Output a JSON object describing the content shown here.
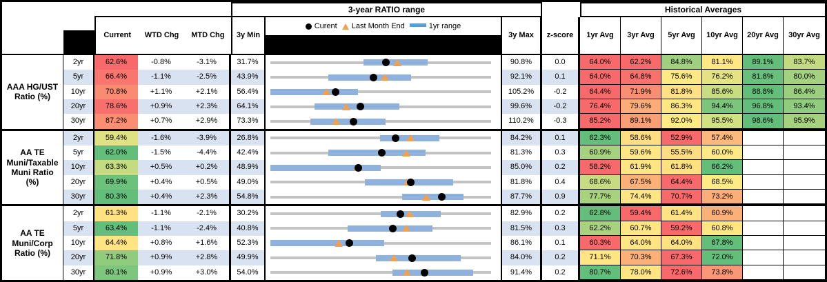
{
  "header": {
    "range_title": "3-year RATIO range",
    "hist_title": "Historical Averages",
    "cols": {
      "current": "Current",
      "wtd": "WTD Chg",
      "mtd": "MTD Chg",
      "min": "3y Min",
      "max": "3y Max",
      "z": "z-score"
    },
    "avg_cols": [
      "1yr Avg",
      "3yr Avg",
      "5yr Avg",
      "10yr Avg",
      "20yr Avg",
      "30yr Avg"
    ],
    "legend": {
      "current": "Curent",
      "last_month": "Last Month End",
      "range": "1yr range"
    }
  },
  "colors": {
    "stripe": "#D9E2F1",
    "bar": "#8FB2DC",
    "track": "#C3C3C3",
    "marker_orange": "#F2A04E",
    "legend_dash": "#5B9BD5",
    "heat_red": "#F8696B",
    "heat_yellow": "#FFEB84",
    "heat_green": "#63BE7B"
  },
  "groups": [
    {
      "label_lines": [
        "AAA HG/UST",
        "Ratio (%)"
      ],
      "rows": [
        {
          "tenor": "2yr",
          "current": "62.6%",
          "current_bg": "#F8696B",
          "wtd": "-0.8%",
          "mtd": "-3.1%",
          "min": "31.7%",
          "max": "90.8%",
          "z": "0.0",
          "min_v": 31.7,
          "max_v": 90.8,
          "bar": [
            56.6,
            73.9
          ],
          "dot_v": 62.6,
          "tri_v": 65.7,
          "avgs": [
            {
              "t": "64.0%",
              "bg": "#F8696B"
            },
            {
              "t": "62.2%",
              "bg": "#F8696B"
            },
            {
              "t": "84.8%",
              "bg": "#A0D07F"
            },
            {
              "t": "81.1%",
              "bg": "#FFE884"
            },
            {
              "t": "89.1%",
              "bg": "#63BE7B"
            },
            {
              "t": "83.7%",
              "bg": "#C3DA80"
            }
          ]
        },
        {
          "tenor": "5yr",
          "current": "66.4%",
          "current_bg": "#F8766F",
          "wtd": "-1.1%",
          "mtd": "-2.5%",
          "min": "43.9%",
          "max": "92.1%",
          "z": "0.1",
          "min_v": 43.9,
          "max_v": 92.1,
          "bar": [
            56.5,
            74.6
          ],
          "dot_v": 66.4,
          "tri_v": 68.9,
          "avgs": [
            {
              "t": "64.0%",
              "bg": "#F8696B"
            },
            {
              "t": "64.8%",
              "bg": "#F8716D"
            },
            {
              "t": "75.6%",
              "bg": "#FFE984"
            },
            {
              "t": "76.2%",
              "bg": "#E3E383"
            },
            {
              "t": "81.8%",
              "bg": "#68C07C"
            },
            {
              "t": "80.0%",
              "bg": "#A4D17F"
            }
          ]
        },
        {
          "tenor": "10yr",
          "current": "70.8%",
          "current_bg": "#F98B72",
          "wtd": "+1.1%",
          "mtd": "+2.1%",
          "min": "56.4%",
          "max": "105.2%",
          "z": "-0.2",
          "min_v": 56.4,
          "max_v": 105.2,
          "bar": [
            56.4,
            75.8
          ],
          "dot_v": 70.8,
          "tri_v": 68.7,
          "avgs": [
            {
              "t": "64.4%",
              "bg": "#F8696B"
            },
            {
              "t": "71.9%",
              "bg": "#F98E73"
            },
            {
              "t": "81.8%",
              "bg": "#FFE082"
            },
            {
              "t": "85.6%",
              "bg": "#C8DC81"
            },
            {
              "t": "88.8%",
              "bg": "#63BE7B"
            },
            {
              "t": "86.4%",
              "bg": "#9BCE7E"
            }
          ]
        },
        {
          "tenor": "20yr",
          "current": "78.6%",
          "current_bg": "#F8706D",
          "wtd": "+0.9%",
          "mtd": "+2.3%",
          "min": "64.1%",
          "max": "99.6%",
          "z": "-0.2",
          "min_v": 64.1,
          "max_v": 99.6,
          "bar": [
            71.2,
            84.9
          ],
          "dot_v": 78.6,
          "tri_v": 76.3,
          "avgs": [
            {
              "t": "76.4%",
              "bg": "#F8696B"
            },
            {
              "t": "79.6%",
              "bg": "#FBAC77"
            },
            {
              "t": "86.3%",
              "bg": "#FFE683"
            },
            {
              "t": "94.4%",
              "bg": "#7CC57D"
            },
            {
              "t": "96.8%",
              "bg": "#63BE7B"
            },
            {
              "t": "93.4%",
              "bg": "#90CB7E"
            }
          ]
        },
        {
          "tenor": "30yr",
          "current": "87.2%",
          "current_bg": "#F98E73",
          "wtd": "+0.7%",
          "mtd": "+2.9%",
          "min": "73.3%",
          "max": "110.2%",
          "z": "-0.3",
          "min_v": 73.3,
          "max_v": 110.2,
          "bar": [
            80.0,
            92.6
          ],
          "dot_v": 87.2,
          "tri_v": 84.3,
          "avgs": [
            {
              "t": "85.2%",
              "bg": "#F8696B"
            },
            {
              "t": "89.1%",
              "bg": "#FA9F75"
            },
            {
              "t": "92.0%",
              "bg": "#FFEB84"
            },
            {
              "t": "95.5%",
              "bg": "#D2DF82"
            },
            {
              "t": "98.6%",
              "bg": "#63BE7B"
            },
            {
              "t": "95.9%",
              "bg": "#A6D17F"
            }
          ]
        }
      ]
    },
    {
      "label_lines": [
        "AA TE",
        "Muni/Taxable",
        "Muni Ratio",
        "(%)"
      ],
      "rows": [
        {
          "tenor": "2yr",
          "current": "59.4%",
          "current_bg": "#DFE283",
          "wtd": "-1.6%",
          "mtd": "-3.9%",
          "min": "26.8%",
          "max": "84.2%",
          "z": "0.1",
          "min_v": 26.8,
          "max_v": 84.2,
          "bar": [
            55.4,
            70.8
          ],
          "dot_v": 59.4,
          "tri_v": 63.3,
          "avgs": [
            {
              "t": "62.3%",
              "bg": "#63BE7B"
            },
            {
              "t": "58.6%",
              "bg": "#FFDD81"
            },
            {
              "t": "52.9%",
              "bg": "#F8696B"
            },
            {
              "t": "57.4%",
              "bg": "#FCB97B"
            },
            null,
            null
          ]
        },
        {
          "tenor": "5yr",
          "current": "62.0%",
          "current_bg": "#63BE7B",
          "wtd": "-1.5%",
          "mtd": "-4.4%",
          "min": "42.4%",
          "max": "81.3%",
          "z": "0.3",
          "min_v": 42.4,
          "max_v": 81.3,
          "bar": [
            52.6,
            69.8
          ],
          "dot_v": 62.0,
          "tri_v": 66.4,
          "avgs": [
            {
              "t": "60.9%",
              "bg": "#A6D17F"
            },
            {
              "t": "59.6%",
              "bg": "#FFE883"
            },
            {
              "t": "55.5%",
              "bg": "#FEDE81"
            },
            {
              "t": "60.0%",
              "bg": "#FFE984"
            },
            null,
            null
          ]
        },
        {
          "tenor": "10yr",
          "current": "63.3%",
          "current_bg": "#C4DB81",
          "wtd": "+0.5%",
          "mtd": "+0.2%",
          "min": "48.9%",
          "max": "85.0%",
          "z": "0.2",
          "min_v": 48.9,
          "max_v": 85.0,
          "bar": [
            48.9,
            66.9
          ],
          "dot_v": 63.3,
          "tri_v": 63.1,
          "avgs": [
            {
              "t": "58.2%",
              "bg": "#F8696B"
            },
            {
              "t": "61.9%",
              "bg": "#FFE583"
            },
            {
              "t": "61.8%",
              "bg": "#FFE182"
            },
            {
              "t": "66.2%",
              "bg": "#63BE7B"
            },
            null,
            null
          ]
        },
        {
          "tenor": "20yr",
          "current": "69.9%",
          "current_bg": "#6CC17C",
          "wtd": "+0.4%",
          "mtd": "+0.5%",
          "min": "49.0%",
          "max": "81.8%",
          "z": "0.4",
          "min_v": 49.0,
          "max_v": 81.8,
          "bar": [
            63.0,
            76.2
          ],
          "dot_v": 69.9,
          "tri_v": 69.4,
          "avgs": [
            {
              "t": "68.6%",
              "bg": "#C7DC81"
            },
            {
              "t": "67.5%",
              "bg": "#FBB078"
            },
            {
              "t": "64.4%",
              "bg": "#F8696B"
            },
            {
              "t": "68.5%",
              "bg": "#FFEB84"
            },
            null,
            null
          ]
        },
        {
          "tenor": "30yr",
          "current": "80.3%",
          "current_bg": "#63BE7B",
          "wtd": "+0.4%",
          "mtd": "+2.3%",
          "min": "54.8%",
          "max": "87.7%",
          "z": "0.9",
          "min_v": 54.8,
          "max_v": 87.7,
          "bar": [
            74.4,
            83.6
          ],
          "dot_v": 80.3,
          "tri_v": 78.0,
          "avgs": [
            {
              "t": "77.7%",
              "bg": "#A9D27F"
            },
            {
              "t": "74.4%",
              "bg": "#FFE583"
            },
            {
              "t": "70.7%",
              "bg": "#F8696B"
            },
            {
              "t": "73.2%",
              "bg": "#FBAE77"
            },
            null,
            null
          ]
        }
      ]
    },
    {
      "label_lines": [
        "AA TE",
        "Muni/Corp",
        "Ratio (%)"
      ],
      "rows": [
        {
          "tenor": "2yr",
          "current": "61.3%",
          "current_bg": "#FFE383",
          "wtd": "-1.1%",
          "mtd": "-2.1%",
          "min": "30.2%",
          "max": "82.9%",
          "z": "0.2",
          "min_v": 30.2,
          "max_v": 82.9,
          "bar": [
            56.5,
            70.8
          ],
          "dot_v": 61.3,
          "tri_v": 63.4,
          "avgs": [
            {
              "t": "62.8%",
              "bg": "#63BE7B"
            },
            {
              "t": "59.4%",
              "bg": "#F8696B"
            },
            {
              "t": "61.4%",
              "bg": "#FFE382"
            },
            {
              "t": "60.9%",
              "bg": "#FBB078"
            },
            null,
            null
          ]
        },
        {
          "tenor": "5yr",
          "current": "63.4%",
          "current_bg": "#63BE7B",
          "wtd": "-1.1%",
          "mtd": "-2.4%",
          "min": "40.8%",
          "max": "81.5%",
          "z": "0.3",
          "min_v": 40.8,
          "max_v": 81.5,
          "bar": [
            55.1,
            70.7
          ],
          "dot_v": 63.4,
          "tri_v": 65.8,
          "avgs": [
            {
              "t": "62.2%",
              "bg": "#A9D27F"
            },
            {
              "t": "60.7%",
              "bg": "#FFE583"
            },
            {
              "t": "59.2%",
              "bg": "#F8696B"
            },
            {
              "t": "60.8%",
              "bg": "#FFE683"
            },
            null,
            null
          ]
        },
        {
          "tenor": "10yr",
          "current": "64.4%",
          "current_bg": "#FFE484",
          "wtd": "+0.8%",
          "mtd": "+1.6%",
          "min": "52.3%",
          "max": "86.1%",
          "z": "0.1",
          "min_v": 52.3,
          "max_v": 86.1,
          "bar": [
            52.3,
            69.7
          ],
          "dot_v": 64.4,
          "tri_v": 62.8,
          "avgs": [
            {
              "t": "60.3%",
              "bg": "#F8696B"
            },
            {
              "t": "64.0%",
              "bg": "#FFE583"
            },
            {
              "t": "64.0%",
              "bg": "#FFE182"
            },
            {
              "t": "67.8%",
              "bg": "#63BE7B"
            },
            null,
            null
          ]
        },
        {
          "tenor": "20yr",
          "current": "71.8%",
          "current_bg": "#90CB7E",
          "wtd": "+0.9%",
          "mtd": "+2.8%",
          "min": "49.9%",
          "max": "84.0%",
          "z": "0.2",
          "min_v": 49.9,
          "max_v": 84.0,
          "bar": [
            66.2,
            79.3
          ],
          "dot_v": 71.8,
          "tri_v": 69.0,
          "avgs": [
            {
              "t": "71.1%",
              "bg": "#FFE583"
            },
            {
              "t": "70.3%",
              "bg": "#FBB078"
            },
            {
              "t": "67.3%",
              "bg": "#F8696B"
            },
            {
              "t": "72.0%",
              "bg": "#63BE7B"
            },
            null,
            null
          ]
        },
        {
          "tenor": "30yr",
          "current": "80.1%",
          "current_bg": "#7EC57D",
          "wtd": "+0.9%",
          "mtd": "+3.0%",
          "min": "54.0%",
          "max": "91.4%",
          "z": "0.2",
          "min_v": 54.0,
          "max_v": 91.4,
          "bar": [
            74.7,
            88.4
          ],
          "dot_v": 80.1,
          "tri_v": 77.1,
          "avgs": [
            {
              "t": "80.7%",
              "bg": "#63BE7B"
            },
            {
              "t": "78.0%",
              "bg": "#FFE583"
            },
            {
              "t": "72.6%",
              "bg": "#F8696B"
            },
            {
              "t": "73.8%",
              "bg": "#FA9776"
            },
            null,
            null
          ]
        }
      ]
    }
  ],
  "chart_data": {
    "type": "range-dot",
    "title": "3-year RATIO range",
    "x_unit": "percent ratio",
    "legend": [
      "Curent",
      "Last Month End",
      "1yr range"
    ],
    "rows": [
      {
        "series": "AAA HG/UST 2yr",
        "min": 31.7,
        "max": 90.8,
        "range_1yr": [
          56.6,
          73.9
        ],
        "current": 62.6,
        "last_month_end": 65.7,
        "z_score": 0.0
      },
      {
        "series": "AAA HG/UST 5yr",
        "min": 43.9,
        "max": 92.1,
        "range_1yr": [
          56.5,
          74.6
        ],
        "current": 66.4,
        "last_month_end": 68.9,
        "z_score": 0.1
      },
      {
        "series": "AAA HG/UST 10yr",
        "min": 56.4,
        "max": 105.2,
        "range_1yr": [
          56.4,
          75.8
        ],
        "current": 70.8,
        "last_month_end": 68.7,
        "z_score": -0.2
      },
      {
        "series": "AAA HG/UST 20yr",
        "min": 64.1,
        "max": 99.6,
        "range_1yr": [
          71.2,
          84.9
        ],
        "current": 78.6,
        "last_month_end": 76.3,
        "z_score": -0.2
      },
      {
        "series": "AAA HG/UST 30yr",
        "min": 73.3,
        "max": 110.2,
        "range_1yr": [
          80.0,
          92.6
        ],
        "current": 87.2,
        "last_month_end": 84.3,
        "z_score": -0.3
      },
      {
        "series": "AA TE Muni/Taxable 2yr",
        "min": 26.8,
        "max": 84.2,
        "range_1yr": [
          55.4,
          70.8
        ],
        "current": 59.4,
        "last_month_end": 63.3,
        "z_score": 0.1
      },
      {
        "series": "AA TE Muni/Taxable 5yr",
        "min": 42.4,
        "max": 81.3,
        "range_1yr": [
          52.6,
          69.8
        ],
        "current": 62.0,
        "last_month_end": 66.4,
        "z_score": 0.3
      },
      {
        "series": "AA TE Muni/Taxable 10yr",
        "min": 48.9,
        "max": 85.0,
        "range_1yr": [
          48.9,
          66.9
        ],
        "current": 63.3,
        "last_month_end": 63.1,
        "z_score": 0.2
      },
      {
        "series": "AA TE Muni/Taxable 20yr",
        "min": 49.0,
        "max": 81.8,
        "range_1yr": [
          63.0,
          76.2
        ],
        "current": 69.9,
        "last_month_end": 69.4,
        "z_score": 0.4
      },
      {
        "series": "AA TE Muni/Taxable 30yr",
        "min": 54.8,
        "max": 87.7,
        "range_1yr": [
          74.4,
          83.6
        ],
        "current": 80.3,
        "last_month_end": 78.0,
        "z_score": 0.9
      },
      {
        "series": "AA TE Muni/Corp 2yr",
        "min": 30.2,
        "max": 82.9,
        "range_1yr": [
          56.5,
          70.8
        ],
        "current": 61.3,
        "last_month_end": 63.4,
        "z_score": 0.2
      },
      {
        "series": "AA TE Muni/Corp 5yr",
        "min": 40.8,
        "max": 81.5,
        "range_1yr": [
          55.1,
          70.7
        ],
        "current": 63.4,
        "last_month_end": 65.8,
        "z_score": 0.3
      },
      {
        "series": "AA TE Muni/Corp 10yr",
        "min": 52.3,
        "max": 86.1,
        "range_1yr": [
          52.3,
          69.7
        ],
        "current": 64.4,
        "last_month_end": 62.8,
        "z_score": 0.1
      },
      {
        "series": "AA TE Muni/Corp 20yr",
        "min": 49.9,
        "max": 84.0,
        "range_1yr": [
          66.2,
          79.3
        ],
        "current": 71.8,
        "last_month_end": 69.0,
        "z_score": 0.2
      },
      {
        "series": "AA TE Muni/Corp 30yr",
        "min": 54.0,
        "max": 91.4,
        "range_1yr": [
          74.7,
          88.4
        ],
        "current": 80.1,
        "last_month_end": 77.1,
        "z_score": 0.2
      }
    ]
  }
}
